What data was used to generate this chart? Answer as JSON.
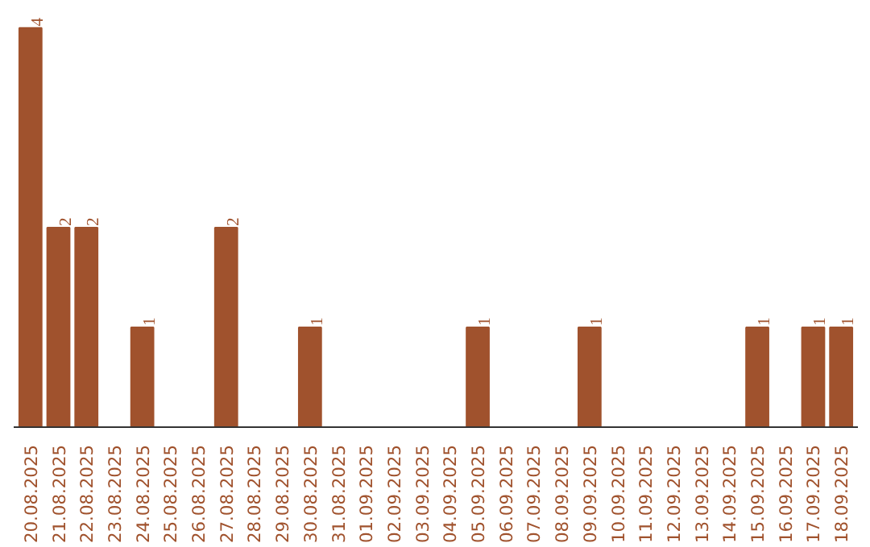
{
  "chart_data": {
    "type": "bar",
    "categories": [
      "20.08.2025",
      "21.08.2025",
      "22.08.2025",
      "23.08.2025",
      "24.08.2025",
      "25.08.2025",
      "26.08.2025",
      "27.08.2025",
      "28.08.2025",
      "29.08.2025",
      "30.08.2025",
      "31.08.2025",
      "01.09.2025",
      "02.09.2025",
      "03.09.2025",
      "04.09.2025",
      "05.09.2025",
      "06.09.2025",
      "07.09.2025",
      "08.09.2025",
      "09.09.2025",
      "10.09.2025",
      "11.09.2025",
      "12.09.2025",
      "13.09.2025",
      "14.09.2025",
      "15.09.2025",
      "16.09.2025",
      "17.09.2025",
      "18.09.2025"
    ],
    "values": [
      4,
      2,
      2,
      0,
      1,
      0,
      0,
      2,
      0,
      0,
      1,
      0,
      0,
      0,
      0,
      0,
      1,
      0,
      0,
      0,
      1,
      0,
      0,
      0,
      0,
      0,
      1,
      0,
      1,
      1
    ],
    "value_labels": [
      "4",
      "2",
      "2",
      null,
      "1",
      null,
      null,
      "2",
      null,
      null,
      "1",
      null,
      null,
      null,
      null,
      null,
      "1",
      null,
      null,
      null,
      "1",
      null,
      null,
      null,
      null,
      null,
      "1",
      null,
      "1",
      "1"
    ],
    "color": "#a0522d",
    "grid": false
  }
}
